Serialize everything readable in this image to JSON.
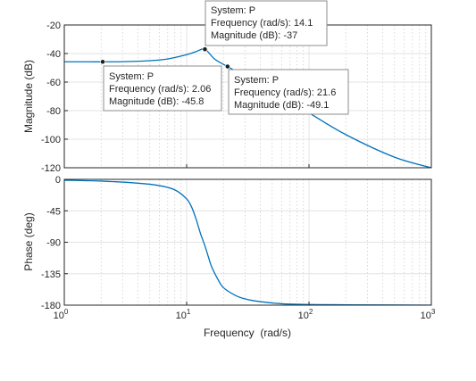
{
  "chart_data": [
    {
      "type": "line",
      "panel": "magnitude",
      "xscale": "log",
      "xlim": [
        1,
        1000
      ],
      "ylim": [
        -120,
        -20
      ],
      "yticks": [
        -20,
        -40,
        -60,
        -80,
        -100,
        -120
      ],
      "ylabel": "Magnitude (dB)",
      "grid": true,
      "series": [
        {
          "x": [
            1,
            1.6,
            2.06,
            3,
            5,
            7,
            10,
            12,
            14.1,
            17,
            21.6,
            30,
            50,
            100,
            200,
            500,
            1000
          ],
          "y": [
            -45.8,
            -45.8,
            -45.8,
            -45.7,
            -45.0,
            -43.8,
            -40.8,
            -38.6,
            -37.0,
            -44.0,
            -49.1,
            -55.9,
            -66.5,
            -81.6,
            -96.8,
            -112.6,
            -120
          ]
        }
      ],
      "annotations": [
        {
          "system_label": "System: P",
          "freq_label": "Frequency (rad/s): 2.06",
          "mag_label": "Magnitude (dB): -45.8",
          "x": 2.06,
          "y": -45.8
        },
        {
          "system_label": "System: P",
          "freq_label": "Frequency (rad/s): 14.1",
          "mag_label": "Magnitude (dB): -37",
          "x": 14.1,
          "y": -37
        },
        {
          "system_label": "System: P",
          "freq_label": "Frequency (rad/s): 21.6",
          "mag_label": "Magnitude (dB): -49.1",
          "x": 21.6,
          "y": -49.1
        }
      ]
    },
    {
      "type": "line",
      "panel": "phase",
      "xscale": "log",
      "xlim": [
        1,
        1000
      ],
      "ylim": [
        -180,
        0
      ],
      "yticks": [
        0,
        -45,
        -90,
        -135,
        -180
      ],
      "ylabel": "Phase (deg)",
      "xlabel": "Frequency  (rad/s)",
      "xticks": [
        1,
        10,
        100,
        1000
      ],
      "xtick_labels": [
        {
          "base": "10",
          "exp": "0"
        },
        {
          "base": "10",
          "exp": "1"
        },
        {
          "base": "10",
          "exp": "2"
        },
        {
          "base": "10",
          "exp": "3"
        }
      ],
      "grid": true,
      "series": [
        {
          "x": [
            1,
            2,
            4,
            6,
            8,
            10,
            11,
            12,
            13,
            14.1,
            15,
            16,
            18,
            20,
            25,
            30,
            40,
            60,
            100,
            200,
            1000
          ],
          "y": [
            -1.2,
            -2.5,
            -5.5,
            -9,
            -15,
            -28,
            -40,
            -58,
            -78,
            -95,
            -110,
            -125,
            -143,
            -155,
            -166,
            -171,
            -175,
            -178,
            -179,
            -179.5,
            -180
          ]
        }
      ]
    }
  ],
  "colors": {
    "line": "#0072BD",
    "axes": "#262626",
    "grid_major": "#e3e3e3",
    "grid_minor": "#cfcfcf",
    "marker": "#1f1f1f",
    "tip_border": "#8c8c8c",
    "tip_fill": "#ffffff"
  }
}
